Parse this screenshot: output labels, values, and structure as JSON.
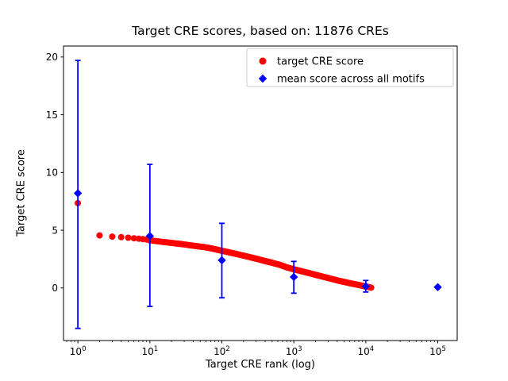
{
  "chart_data": {
    "type": "scatter",
    "title": "Target CRE scores, based on: 11876 CREs",
    "xlabel": "Target CRE rank (log)",
    "ylabel": "Target CRE score",
    "xscale": "log",
    "xlim_log10": [
      -0.2,
      5.27
    ],
    "ylim": [
      -4.55,
      20.95
    ],
    "xticks_log10": [
      0,
      1,
      2,
      3,
      4,
      5
    ],
    "yticks": [
      0,
      5,
      10,
      15,
      20
    ],
    "grid": false,
    "legend_position": "upper right",
    "colors": {
      "target": "#ff0000",
      "mean": "#0000ff",
      "axes": "#000000",
      "legend_border": "#cccccc"
    },
    "legend": [
      {
        "label": "target CRE score",
        "marker": "circle",
        "color": "#ff0000"
      },
      {
        "label": "mean score across all motifs",
        "marker": "diamond",
        "color": "#0000ff"
      }
    ],
    "series": [
      {
        "name": "target CRE score",
        "marker": "circle",
        "color": "#ff0000",
        "max_rank": 11876,
        "points": [
          [
            1,
            7.35
          ],
          [
            2,
            4.55
          ],
          [
            3,
            4.45
          ],
          [
            4,
            4.4
          ],
          [
            5,
            4.35
          ],
          [
            6,
            4.3
          ],
          [
            7,
            4.27
          ],
          [
            8,
            4.23
          ],
          [
            9,
            4.2
          ],
          [
            10,
            4.12
          ],
          [
            12,
            4.06
          ],
          [
            15,
            3.99
          ],
          [
            20,
            3.9
          ],
          [
            25,
            3.83
          ],
          [
            30,
            3.77
          ],
          [
            40,
            3.66
          ],
          [
            50,
            3.58
          ],
          [
            65,
            3.48
          ],
          [
            80,
            3.36
          ],
          [
            100,
            3.22
          ],
          [
            130,
            3.07
          ],
          [
            160,
            2.94
          ],
          [
            200,
            2.8
          ],
          [
            260,
            2.63
          ],
          [
            320,
            2.49
          ],
          [
            400,
            2.33
          ],
          [
            500,
            2.18
          ],
          [
            650,
            1.99
          ],
          [
            800,
            1.78
          ],
          [
            1000,
            1.62
          ],
          [
            1300,
            1.44
          ],
          [
            1600,
            1.3
          ],
          [
            2000,
            1.14
          ],
          [
            2600,
            0.96
          ],
          [
            3200,
            0.82
          ],
          [
            4000,
            0.66
          ],
          [
            5000,
            0.52
          ],
          [
            6500,
            0.37
          ],
          [
            8000,
            0.26
          ],
          [
            10000,
            0.12
          ],
          [
            11000,
            0.07
          ],
          [
            11876,
            0.03
          ]
        ]
      },
      {
        "name": "mean score across all motifs",
        "marker": "diamond",
        "color": "#0000ff",
        "points": [
          {
            "x": 1,
            "y": 8.2,
            "lo": -3.5,
            "hi": 19.7
          },
          {
            "x": 10,
            "y": 4.5,
            "lo": -1.6,
            "hi": 10.7
          },
          {
            "x": 100,
            "y": 2.4,
            "lo": -0.85,
            "hi": 5.6
          },
          {
            "x": 1000,
            "y": 0.95,
            "lo": -0.45,
            "hi": 2.3
          },
          {
            "x": 10000,
            "y": 0.15,
            "lo": -0.35,
            "hi": 0.65
          },
          {
            "x": 100000,
            "y": 0.07,
            "lo": null,
            "hi": null
          }
        ]
      }
    ]
  }
}
